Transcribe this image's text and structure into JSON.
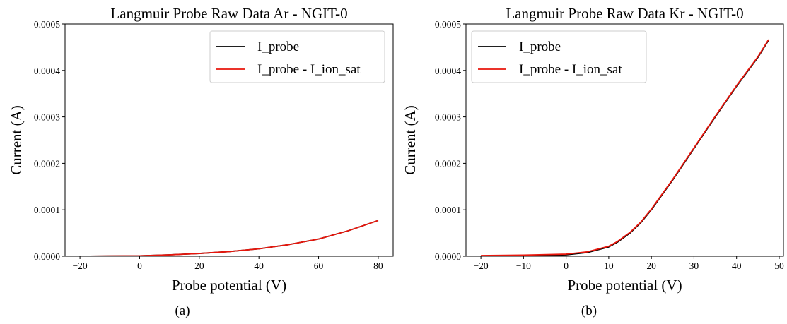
{
  "chart_data": [
    {
      "type": "line",
      "title": "Langmuir Probe Raw Data Ar - NGIT-0",
      "xlabel": "Probe potential (V)",
      "ylabel": "Current (A)",
      "caption": "(a)",
      "xlim": [
        -25,
        85
      ],
      "ylim": [
        0,
        0.0005
      ],
      "xticks": [
        -20,
        0,
        20,
        40,
        60,
        80
      ],
      "xtick_labels": [
        "−20",
        "0",
        "20",
        "40",
        "60",
        "80"
      ],
      "yticks": [
        0,
        0.0001,
        0.0002,
        0.0003,
        0.0004,
        0.0005
      ],
      "ytick_labels": [
        "0.0000",
        "0.0001",
        "0.0002",
        "0.0003",
        "0.0004",
        "0.0005"
      ],
      "grid": false,
      "legend_position": "top-right",
      "series": [
        {
          "name": "I_probe",
          "color": "#000000",
          "x": [
            -20,
            -10,
            0,
            10,
            20,
            30,
            40,
            50,
            60,
            70,
            80
          ],
          "y": [
            0,
            5e-07,
            1e-06,
            3e-06,
            6e-06,
            1e-05,
            1.6e-05,
            2.5e-05,
            3.7e-05,
            5.5e-05,
            7.7e-05
          ]
        },
        {
          "name": "I_probe -  I_ion_sat",
          "color": "#e8160c",
          "x": [
            -20,
            -10,
            0,
            10,
            20,
            30,
            40,
            50,
            60,
            70,
            80
          ],
          "y": [
            0,
            5e-07,
            1e-06,
            3e-06,
            6e-06,
            1e-05,
            1.6e-05,
            2.5e-05,
            3.7e-05,
            5.5e-05,
            7.7e-05
          ]
        }
      ]
    },
    {
      "type": "line",
      "title": "Langmuir Probe Raw Data Kr - NGIT-0",
      "xlabel": "Probe potential (V)",
      "ylabel": "Current (A)",
      "caption": "(b)",
      "xlim": [
        -23.5,
        51
      ],
      "ylim": [
        0,
        0.0005
      ],
      "xticks": [
        -20,
        -10,
        0,
        10,
        20,
        30,
        40,
        50
      ],
      "xtick_labels": [
        "−20",
        "−10",
        "0",
        "10",
        "20",
        "30",
        "40",
        "50"
      ],
      "yticks": [
        0,
        0.0001,
        0.0002,
        0.0003,
        0.0004,
        0.0005
      ],
      "ytick_labels": [
        "0.0000",
        "0.0001",
        "0.0002",
        "0.0003",
        "0.0004",
        "0.0005"
      ],
      "grid": false,
      "legend_position": "top-left",
      "series": [
        {
          "name": "I_probe",
          "color": "#000000",
          "x": [
            -20,
            -10,
            0,
            5,
            10,
            12,
            15,
            17.5,
            20,
            25,
            30,
            35,
            40,
            45,
            47.5
          ],
          "y": [
            0,
            1e-06,
            3e-06,
            8e-06,
            2e-05,
            3e-05,
            5e-05,
            7.2e-05,
            0.0001,
            0.000164,
            0.000232,
            0.0003,
            0.000366,
            0.000428,
            0.000465
          ]
        },
        {
          "name": "I_probe -  I_ion_sat",
          "color": "#e8160c",
          "x": [
            -20,
            -10,
            0,
            5,
            10,
            12,
            15,
            17.5,
            20,
            25,
            30,
            35,
            40,
            45,
            47.5
          ],
          "y": [
            1.5e-06,
            2.5e-06,
            4.5e-06,
            9.5e-06,
            2.15e-05,
            3.15e-05,
            5.15e-05,
            7.35e-05,
            0.0001015,
            0.0001655,
            0.0002335,
            0.0003015,
            0.0003675,
            0.0004295,
            0.0004665
          ]
        }
      ]
    }
  ]
}
